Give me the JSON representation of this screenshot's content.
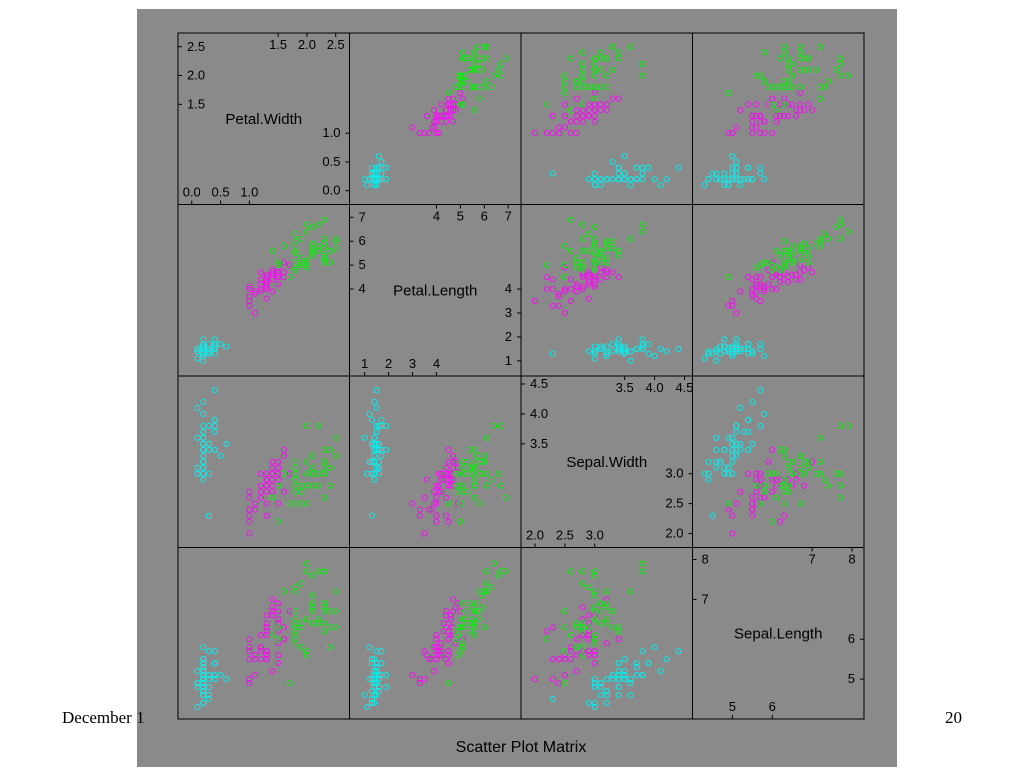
{
  "slide": {
    "footer_left": "December 1",
    "page_number": "20"
  },
  "colors": {
    "background": "#8a8a8a",
    "setosa": "#17e6e6",
    "versicolor": "#e619e6",
    "virginica": "#19e619"
  },
  "chart_data": {
    "type": "scatter",
    "title": "Scatter Plot Matrix",
    "grid": false,
    "variables": [
      {
        "name": "Petal.Width",
        "range": [
          -0.1,
          2.6
        ],
        "upper_ticks": [
          "1.5",
          "2.0",
          "2.5"
        ],
        "lower_ticks": [
          "0.0",
          "0.5",
          "1.0"
        ],
        "right_ticks": [
          "1.0",
          "0.5",
          "0.0"
        ],
        "left_ticks": [
          "2.5",
          "2.0",
          "1.5"
        ]
      },
      {
        "name": "Petal.Length",
        "range": [
          0.7,
          7.2
        ],
        "upper_ticks": [
          "4",
          "5",
          "6",
          "7"
        ],
        "lower_ticks": [
          "1",
          "2",
          "3",
          "4"
        ],
        "left_ticks": [
          "7",
          "6",
          "5",
          "4"
        ],
        "right_ticks": [
          "4",
          "3",
          "2",
          "1"
        ]
      },
      {
        "name": "Sepal.Width",
        "range": [
          1.9,
          4.5
        ],
        "upper_ticks": [
          "3.5",
          "4.0",
          "4.5"
        ],
        "lower_ticks": [
          "2.0",
          "2.5",
          "3.0"
        ],
        "left_ticks": [
          "4.5",
          "4.0",
          "3.5"
        ],
        "right_ticks": [
          "3.0",
          "2.5",
          "2.0"
        ]
      },
      {
        "name": "Sepal.Length",
        "range": [
          4.2,
          8.1
        ],
        "upper_ticks": [
          "7",
          "8"
        ],
        "lower_ticks": [
          "5",
          "6"
        ],
        "left_ticks": [
          "8",
          "7"
        ],
        "right_ticks": [
          "6",
          "5"
        ]
      }
    ],
    "series": [
      {
        "color": "#17e6e6",
        "points": [
          [
            5.1,
            3.5,
            1.4,
            0.2
          ],
          [
            4.9,
            3.0,
            1.4,
            0.2
          ],
          [
            4.7,
            3.2,
            1.3,
            0.2
          ],
          [
            4.6,
            3.1,
            1.5,
            0.2
          ],
          [
            5.0,
            3.6,
            1.4,
            0.2
          ],
          [
            5.4,
            3.9,
            1.7,
            0.4
          ],
          [
            4.6,
            3.4,
            1.4,
            0.3
          ],
          [
            5.0,
            3.4,
            1.5,
            0.2
          ],
          [
            4.4,
            2.9,
            1.4,
            0.2
          ],
          [
            4.9,
            3.1,
            1.5,
            0.1
          ],
          [
            5.4,
            3.7,
            1.5,
            0.2
          ],
          [
            4.8,
            3.4,
            1.6,
            0.2
          ],
          [
            4.8,
            3.0,
            1.4,
            0.1
          ],
          [
            4.3,
            3.0,
            1.1,
            0.1
          ],
          [
            5.8,
            4.0,
            1.2,
            0.2
          ],
          [
            5.7,
            4.4,
            1.5,
            0.4
          ],
          [
            5.4,
            3.9,
            1.3,
            0.4
          ],
          [
            5.1,
            3.5,
            1.4,
            0.3
          ],
          [
            5.7,
            3.8,
            1.7,
            0.3
          ],
          [
            5.1,
            3.8,
            1.5,
            0.3
          ],
          [
            5.4,
            3.4,
            1.7,
            0.2
          ],
          [
            5.1,
            3.7,
            1.5,
            0.4
          ],
          [
            4.6,
            3.6,
            1.0,
            0.2
          ],
          [
            5.1,
            3.3,
            1.7,
            0.5
          ],
          [
            4.8,
            3.4,
            1.9,
            0.2
          ],
          [
            5.0,
            3.0,
            1.6,
            0.2
          ],
          [
            5.0,
            3.4,
            1.6,
            0.4
          ],
          [
            5.2,
            3.5,
            1.5,
            0.2
          ],
          [
            5.2,
            3.4,
            1.4,
            0.2
          ],
          [
            4.7,
            3.2,
            1.6,
            0.2
          ],
          [
            4.8,
            3.1,
            1.6,
            0.2
          ],
          [
            5.4,
            3.4,
            1.5,
            0.4
          ],
          [
            5.2,
            4.1,
            1.5,
            0.1
          ],
          [
            5.5,
            4.2,
            1.4,
            0.2
          ],
          [
            4.9,
            3.1,
            1.5,
            0.2
          ],
          [
            5.0,
            3.2,
            1.2,
            0.2
          ],
          [
            5.5,
            3.5,
            1.3,
            0.2
          ],
          [
            4.9,
            3.6,
            1.4,
            0.1
          ],
          [
            4.4,
            3.0,
            1.3,
            0.2
          ],
          [
            5.1,
            3.4,
            1.5,
            0.2
          ],
          [
            5.0,
            3.5,
            1.3,
            0.3
          ],
          [
            4.5,
            2.3,
            1.3,
            0.3
          ],
          [
            4.4,
            3.2,
            1.3,
            0.2
          ],
          [
            5.0,
            3.5,
            1.6,
            0.6
          ],
          [
            5.1,
            3.8,
            1.9,
            0.4
          ],
          [
            4.8,
            3.0,
            1.4,
            0.3
          ],
          [
            5.1,
            3.8,
            1.6,
            0.2
          ],
          [
            4.6,
            3.2,
            1.4,
            0.2
          ],
          [
            5.3,
            3.7,
            1.5,
            0.2
          ],
          [
            5.0,
            3.3,
            1.4,
            0.2
          ]
        ]
      },
      {
        "color": "#e619e6",
        "points": [
          [
            7.0,
            3.2,
            4.7,
            1.4
          ],
          [
            6.4,
            3.2,
            4.5,
            1.5
          ],
          [
            6.9,
            3.1,
            4.9,
            1.5
          ],
          [
            5.5,
            2.3,
            4.0,
            1.3
          ],
          [
            6.5,
            2.8,
            4.6,
            1.5
          ],
          [
            5.7,
            2.8,
            4.5,
            1.3
          ],
          [
            6.3,
            3.3,
            4.7,
            1.6
          ],
          [
            4.9,
            2.4,
            3.3,
            1.0
          ],
          [
            6.6,
            2.9,
            4.6,
            1.3
          ],
          [
            5.2,
            2.7,
            3.9,
            1.4
          ],
          [
            5.0,
            2.0,
            3.5,
            1.0
          ],
          [
            5.9,
            3.0,
            4.2,
            1.5
          ],
          [
            6.0,
            2.2,
            4.0,
            1.0
          ],
          [
            6.1,
            2.9,
            4.7,
            1.4
          ],
          [
            5.6,
            2.9,
            3.6,
            1.3
          ],
          [
            6.7,
            3.1,
            4.4,
            1.4
          ],
          [
            5.6,
            3.0,
            4.5,
            1.5
          ],
          [
            5.8,
            2.7,
            4.1,
            1.0
          ],
          [
            6.2,
            2.2,
            4.5,
            1.5
          ],
          [
            5.6,
            2.5,
            3.9,
            1.1
          ],
          [
            5.9,
            3.2,
            4.8,
            1.8
          ],
          [
            6.1,
            2.8,
            4.0,
            1.3
          ],
          [
            6.3,
            2.5,
            4.9,
            1.5
          ],
          [
            6.1,
            2.8,
            4.7,
            1.2
          ],
          [
            6.4,
            2.9,
            4.3,
            1.3
          ],
          [
            6.6,
            3.0,
            4.4,
            1.4
          ],
          [
            6.8,
            2.8,
            4.8,
            1.4
          ],
          [
            6.7,
            3.0,
            5.0,
            1.7
          ],
          [
            6.0,
            2.9,
            4.5,
            1.5
          ],
          [
            5.7,
            2.6,
            3.5,
            1.0
          ],
          [
            5.5,
            2.4,
            3.8,
            1.1
          ],
          [
            5.5,
            2.4,
            3.7,
            1.0
          ],
          [
            5.8,
            2.7,
            3.9,
            1.2
          ],
          [
            6.0,
            2.7,
            5.1,
            1.6
          ],
          [
            5.4,
            3.0,
            4.5,
            1.5
          ],
          [
            6.0,
            3.4,
            4.5,
            1.6
          ],
          [
            6.7,
            3.1,
            4.7,
            1.5
          ],
          [
            6.3,
            2.3,
            4.4,
            1.3
          ],
          [
            5.6,
            3.0,
            4.1,
            1.3
          ],
          [
            5.5,
            2.5,
            4.0,
            1.3
          ],
          [
            5.5,
            2.6,
            4.4,
            1.2
          ],
          [
            6.1,
            3.0,
            4.6,
            1.4
          ],
          [
            5.8,
            2.6,
            4.0,
            1.2
          ],
          [
            5.0,
            2.3,
            3.3,
            1.0
          ],
          [
            5.6,
            2.7,
            4.2,
            1.3
          ],
          [
            5.7,
            3.0,
            4.2,
            1.2
          ],
          [
            5.7,
            2.9,
            4.2,
            1.3
          ],
          [
            6.2,
            2.9,
            4.3,
            1.3
          ],
          [
            5.1,
            2.5,
            3.0,
            1.1
          ],
          [
            5.7,
            2.8,
            4.1,
            1.3
          ]
        ]
      },
      {
        "color": "#19e619",
        "points": [
          [
            6.3,
            3.3,
            6.0,
            2.5
          ],
          [
            5.8,
            2.7,
            5.1,
            1.9
          ],
          [
            7.1,
            3.0,
            5.9,
            2.1
          ],
          [
            6.3,
            2.9,
            5.6,
            1.8
          ],
          [
            6.5,
            3.0,
            5.8,
            2.2
          ],
          [
            7.6,
            3.0,
            6.6,
            2.1
          ],
          [
            4.9,
            2.5,
            4.5,
            1.7
          ],
          [
            7.3,
            2.9,
            6.3,
            1.8
          ],
          [
            6.7,
            2.5,
            5.8,
            1.8
          ],
          [
            7.2,
            3.6,
            6.1,
            2.5
          ],
          [
            6.5,
            3.2,
            5.1,
            2.0
          ],
          [
            6.4,
            2.7,
            5.3,
            1.9
          ],
          [
            6.8,
            3.0,
            5.5,
            2.1
          ],
          [
            5.7,
            2.5,
            5.0,
            2.0
          ],
          [
            5.8,
            2.8,
            5.1,
            2.4
          ],
          [
            6.4,
            3.2,
            5.3,
            2.3
          ],
          [
            6.5,
            3.0,
            5.5,
            1.8
          ],
          [
            7.7,
            3.8,
            6.7,
            2.2
          ],
          [
            7.7,
            2.6,
            6.9,
            2.3
          ],
          [
            6.0,
            2.2,
            5.0,
            1.5
          ],
          [
            6.9,
            3.2,
            5.7,
            2.3
          ],
          [
            5.6,
            2.8,
            4.9,
            2.0
          ],
          [
            7.7,
            2.8,
            6.7,
            2.0
          ],
          [
            6.3,
            2.7,
            4.9,
            1.8
          ],
          [
            6.7,
            3.3,
            5.7,
            2.1
          ],
          [
            7.2,
            3.2,
            6.0,
            1.8
          ],
          [
            6.2,
            2.8,
            4.8,
            1.8
          ],
          [
            6.1,
            3.0,
            4.9,
            1.8
          ],
          [
            6.4,
            2.8,
            5.6,
            2.1
          ],
          [
            7.2,
            3.0,
            5.8,
            1.6
          ],
          [
            7.4,
            2.8,
            6.1,
            1.9
          ],
          [
            7.9,
            3.8,
            6.4,
            2.0
          ],
          [
            6.4,
            2.8,
            5.6,
            2.2
          ],
          [
            6.3,
            2.8,
            5.1,
            1.5
          ],
          [
            6.1,
            2.6,
            5.6,
            1.4
          ],
          [
            7.7,
            3.0,
            6.1,
            2.3
          ],
          [
            6.3,
            3.4,
            5.6,
            2.4
          ],
          [
            6.4,
            3.1,
            5.5,
            1.8
          ],
          [
            6.0,
            3.0,
            4.8,
            1.8
          ],
          [
            6.9,
            3.1,
            5.4,
            2.1
          ],
          [
            6.7,
            3.1,
            5.6,
            2.4
          ],
          [
            6.9,
            3.1,
            5.1,
            2.3
          ],
          [
            5.8,
            2.7,
            5.1,
            1.9
          ],
          [
            6.8,
            3.2,
            5.9,
            2.3
          ],
          [
            6.7,
            3.3,
            5.7,
            2.5
          ],
          [
            6.7,
            3.0,
            5.2,
            2.3
          ],
          [
            6.3,
            2.5,
            5.0,
            1.9
          ],
          [
            6.5,
            3.0,
            5.2,
            2.0
          ],
          [
            6.2,
            3.4,
            5.4,
            2.3
          ],
          [
            5.9,
            3.0,
            5.1,
            1.8
          ]
        ]
      }
    ],
    "point_order": [
      "Sepal.Length",
      "Sepal.Width",
      "Petal.Length",
      "Petal.Width"
    ]
  }
}
